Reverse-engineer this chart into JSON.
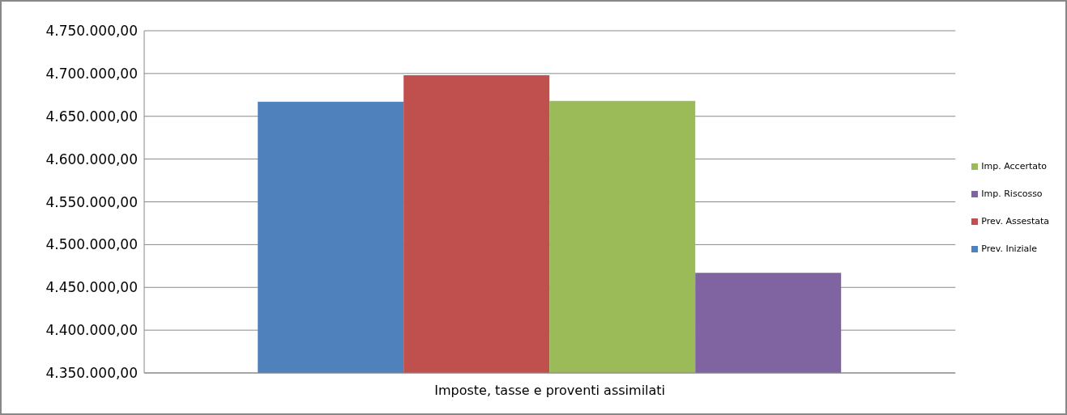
{
  "chart_data": {
    "type": "bar",
    "categories": [
      "Imposte, tasse e proventi assimilati"
    ],
    "series": [
      {
        "name": "Prev. Iniziale",
        "color": "#4f81bd",
        "values": [
          4667000
        ]
      },
      {
        "name": "Prev. Assestata",
        "color": "#c0504d",
        "values": [
          4698000
        ]
      },
      {
        "name": "Imp. Accertato",
        "color": "#9bbb59",
        "values": [
          4668000
        ]
      },
      {
        "name": "Imp. Riscosso",
        "color": "#8064a2",
        "values": [
          4467000
        ]
      }
    ],
    "ylim": [
      4350000,
      4750000
    ],
    "yticks": [
      {
        "value": 4350000,
        "label": "4.350.000,00"
      },
      {
        "value": 4400000,
        "label": "4.400.000,00"
      },
      {
        "value": 4450000,
        "label": "4.450.000,00"
      },
      {
        "value": 4500000,
        "label": "4.500.000,00"
      },
      {
        "value": 4550000,
        "label": "4.550.000,00"
      },
      {
        "value": 4600000,
        "label": "4.600.000,00"
      },
      {
        "value": 4650000,
        "label": "4.650.000,00"
      },
      {
        "value": 4700000,
        "label": "4.700.000,00"
      },
      {
        "value": 4750000,
        "label": "4.750.000,00"
      }
    ],
    "grid": "y",
    "legend": "right"
  }
}
